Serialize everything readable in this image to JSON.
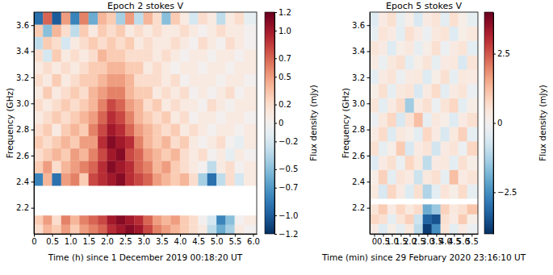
{
  "chart_data": [
    {
      "type": "heatmap",
      "title": "Epoch 2 stokes V",
      "x_label": "Time (h) since 1 December 2019 00:18:20 UT",
      "y_label": "Frequency (GHz)",
      "xlim": [
        0,
        6.1
      ],
      "xticks": [
        0,
        0.5,
        {
          "value": 1,
          "label": "1.0"
        },
        1.5,
        {
          "value": 2,
          "label": "2.0"
        },
        2.5,
        {
          "value": 3,
          "label": "3.0"
        },
        3.5,
        {
          "value": 4,
          "label": "4.0"
        },
        4.5,
        {
          "value": 5,
          "label": "5.0"
        },
        5.5,
        {
          "value": 6,
          "label": "6.0"
        }
      ],
      "ylim": [
        2.0,
        3.7
      ],
      "yticks": [
        2.2,
        2.4,
        2.6,
        2.8,
        {
          "value": 3,
          "label": "3.0"
        },
        3.2,
        3.4,
        3.6
      ],
      "x_edges": [
        0,
        0.25,
        0.5,
        0.75,
        1,
        1.25,
        1.5,
        1.75,
        2,
        2.25,
        2.5,
        2.75,
        3,
        3.25,
        3.5,
        3.75,
        4,
        4.25,
        4.5,
        4.75,
        5,
        5.25,
        5.5,
        5.75,
        6.1
      ],
      "y_edges": [
        2.0,
        2.07,
        2.14,
        2.37,
        2.465,
        2.56,
        2.655,
        2.75,
        2.845,
        2.94,
        3.035,
        3.13,
        3.225,
        3.32,
        3.415,
        3.51,
        3.605,
        3.7
      ],
      "cells": [
        [
          0.2,
          0.4,
          0.3,
          0.5,
          0.3,
          0.5,
          0.6,
          0.7,
          0.9,
          1.0,
          1.1,
          1.0,
          0.8,
          0.6,
          0.5,
          0.4,
          0.3,
          0.2,
          0.1,
          -0.3,
          -0.6,
          -0.4,
          0.1,
          0.0
        ],
        [
          0.3,
          0.5,
          0.2,
          0.6,
          0.4,
          0.6,
          0.7,
          0.8,
          1.0,
          1.1,
          1.0,
          0.9,
          0.7,
          0.5,
          0.4,
          0.5,
          0.3,
          0.2,
          0.0,
          -0.2,
          -0.8,
          -0.5,
          0.0,
          0.1
        ],
        null,
        [
          -0.8,
          0.4,
          -0.9,
          0.5,
          0.6,
          0.3,
          0.8,
          0.9,
          1.0,
          1.1,
          0.9,
          0.8,
          0.7,
          0.5,
          0.4,
          0.3,
          0.4,
          0.2,
          -0.4,
          -0.9,
          -0.3,
          0.2,
          -0.2,
          0.1
        ],
        [
          0.3,
          0.5,
          0.2,
          0.4,
          0.5,
          0.6,
          0.7,
          0.9,
          1.1,
          1.0,
          0.9,
          0.7,
          0.6,
          0.4,
          0.5,
          0.3,
          0.2,
          0.1,
          0.0,
          -0.3,
          0.1,
          0.2,
          0.0,
          0.1
        ],
        [
          0.2,
          0.3,
          0.4,
          0.3,
          0.5,
          0.4,
          0.6,
          0.8,
          1.0,
          1.1,
          0.8,
          0.7,
          0.5,
          0.4,
          0.3,
          0.4,
          0.2,
          0.1,
          0.2,
          0.0,
          0.1,
          -0.1,
          0.1,
          0.0
        ],
        [
          0.3,
          0.2,
          0.3,
          0.4,
          0.3,
          0.5,
          0.5,
          0.9,
          1.1,
          1.0,
          0.9,
          0.6,
          0.4,
          0.3,
          0.4,
          0.2,
          0.3,
          0.1,
          0.0,
          0.1,
          0.2,
          0.0,
          -0.1,
          0.1
        ],
        [
          0.2,
          0.3,
          0.1,
          0.3,
          0.4,
          0.3,
          0.6,
          0.8,
          1.0,
          0.9,
          0.7,
          0.5,
          0.4,
          0.3,
          0.2,
          0.3,
          0.1,
          0.2,
          0.1,
          0.0,
          0.1,
          0.1,
          0.0,
          0.1
        ],
        [
          0.1,
          0.2,
          0.3,
          0.2,
          0.3,
          0.4,
          0.5,
          0.7,
          0.9,
          0.8,
          0.6,
          0.4,
          0.3,
          0.2,
          0.3,
          0.1,
          0.2,
          0.0,
          0.1,
          0.1,
          0.0,
          0.1,
          0.1,
          0.0
        ],
        [
          0.2,
          0.1,
          0.2,
          0.3,
          0.2,
          0.3,
          0.4,
          0.6,
          0.8,
          0.7,
          0.5,
          0.4,
          0.2,
          0.3,
          0.1,
          0.2,
          0.1,
          0.1,
          0.0,
          0.2,
          0.1,
          0.0,
          0.1,
          0.1
        ],
        [
          0.1,
          0.3,
          0.1,
          0.2,
          0.3,
          0.2,
          0.4,
          0.5,
          0.6,
          0.6,
          0.4,
          0.3,
          0.3,
          0.1,
          0.2,
          0.1,
          0.2,
          0.0,
          0.1,
          0.0,
          0.1,
          0.2,
          0.0,
          0.1
        ],
        [
          0.2,
          0.1,
          0.3,
          0.1,
          0.2,
          0.3,
          0.3,
          0.4,
          0.5,
          0.5,
          0.4,
          0.2,
          0.2,
          0.2,
          0.1,
          0.2,
          0.0,
          0.1,
          0.1,
          0.1,
          0.0,
          0.1,
          0.1,
          0.0
        ],
        [
          0.1,
          0.2,
          0.1,
          0.2,
          0.1,
          0.2,
          0.3,
          0.3,
          0.4,
          0.4,
          0.3,
          0.3,
          0.1,
          0.2,
          0.1,
          0.0,
          0.1,
          0.1,
          0.0,
          0.1,
          0.1,
          0.0,
          0.1,
          0.1
        ],
        [
          0.2,
          -0.2,
          0.3,
          0.1,
          0.2,
          0.1,
          0.2,
          0.4,
          0.3,
          0.3,
          0.2,
          0.2,
          0.2,
          0.1,
          0.2,
          0.1,
          0.0,
          0.1,
          0.1,
          0.0,
          0.1,
          0.1,
          0.0,
          0.1
        ],
        [
          -0.3,
          0.3,
          0.2,
          -0.2,
          0.1,
          0.2,
          0.3,
          0.2,
          0.3,
          0.2,
          0.3,
          0.1,
          0.2,
          0.1,
          0.1,
          0.2,
          0.1,
          0.0,
          0.2,
          0.1,
          0.0,
          0.2,
          0.1,
          0.0
        ],
        [
          0.3,
          -0.5,
          0.4,
          0.2,
          -0.3,
          0.3,
          0.1,
          0.3,
          0.2,
          0.3,
          0.1,
          0.2,
          0.1,
          0.2,
          0.1,
          0.1,
          0.2,
          0.1,
          0.0,
          0.1,
          0.2,
          0.1,
          0.1,
          0.0
        ],
        [
          -0.9,
          0.7,
          -1.0,
          0.5,
          -0.8,
          0.6,
          -0.6,
          0.4,
          0.3,
          -0.4,
          0.5,
          -0.3,
          0.4,
          0.2,
          -0.5,
          0.3,
          0.1,
          -0.2,
          0.2,
          0.1,
          -0.3,
          0.1,
          0.2,
          -0.1
        ]
      ],
      "colorbar": {
        "label": "Flux density (mJy)",
        "range": [
          -1.2,
          1.2
        ],
        "ticks": [
          1.2,
          {
            "value": 1,
            "label": "1.0"
          },
          0.7,
          0.5,
          0.2,
          0,
          {
            "value": -0.2,
            "label": "−0.2"
          },
          {
            "value": -0.5,
            "label": "−0.5"
          },
          {
            "value": -0.7,
            "label": "−0.7"
          },
          {
            "value": -1,
            "label": "−1.0"
          },
          {
            "value": -1.2,
            "label": "−1.2"
          }
        ]
      }
    },
    {
      "type": "heatmap",
      "title": "Epoch 5 stokes V",
      "x_label": "Time (min) since 29 February 2020 23:16:10 UT",
      "y_label": "Frequency (GHz)",
      "xlim": [
        -0.25,
        5.85
      ],
      "xticks": [
        0,
        0.5,
        {
          "value": 1,
          "label": "1.0"
        },
        1.5,
        {
          "value": 2,
          "label": "2.0"
        },
        2.5,
        {
          "value": 3,
          "label": "3.0"
        },
        3.5,
        {
          "value": 4,
          "label": "4.0"
        },
        4.5,
        {
          "value": 5,
          "label": "5.0"
        },
        5.5
      ],
      "ylim": [
        2.0,
        3.7
      ],
      "yticks": [
        2.2,
        2.4,
        2.6,
        2.8,
        {
          "value": 3,
          "label": "3.0"
        },
        3.2,
        3.4,
        3.6
      ],
      "x_edges": [
        -0.25,
        0.25,
        0.75,
        1.25,
        1.75,
        2.25,
        2.75,
        3.25,
        3.75,
        4.25,
        4.75,
        5.25,
        5.85
      ],
      "y_edges": [
        2.0,
        2.075,
        2.15,
        2.225,
        2.27,
        2.38,
        2.49,
        2.6,
        2.71,
        2.82,
        2.93,
        3.04,
        3.15,
        3.26,
        3.37,
        3.48,
        3.59,
        3.7
      ],
      "cells": [
        [
          0.3,
          -0.5,
          0.2,
          -0.3,
          0.4,
          -1.0,
          -3.8,
          -2.5,
          0.5,
          -0.4,
          0.3,
          -0.2
        ],
        [
          0.8,
          0.6,
          -0.4,
          0.5,
          0.9,
          -0.8,
          -3.2,
          -3.5,
          0.6,
          0.3,
          1.0,
          0.2
        ],
        [
          0.5,
          1.0,
          0.3,
          0.8,
          0.4,
          0.7,
          -2.0,
          -1.5,
          0.9,
          0.4,
          0.6,
          1.1
        ],
        null,
        [
          0.4,
          -0.6,
          0.8,
          0.3,
          -0.5,
          0.6,
          -1.2,
          -0.4,
          0.5,
          0.2,
          0.7,
          -0.3
        ],
        [
          0.2,
          0.9,
          -0.4,
          0.5,
          0.3,
          -0.8,
          0.4,
          0.6,
          -0.3,
          1.2,
          0.3,
          0.5
        ],
        [
          -0.5,
          0.3,
          0.6,
          -0.2,
          0.8,
          0.4,
          -1.0,
          0.3,
          0.4,
          -0.4,
          0.6,
          0.2
        ],
        [
          0.6,
          -0.3,
          0.2,
          1.0,
          -0.6,
          0.3,
          0.5,
          -0.7,
          0.3,
          0.5,
          -0.2,
          0.8
        ],
        [
          0.3,
          0.7,
          -0.5,
          0.4,
          0.2,
          -0.4,
          0.8,
          0.3,
          -0.6,
          0.4,
          0.9,
          -0.3
        ],
        [
          -0.2,
          0.4,
          0.8,
          -0.6,
          0.5,
          1.2,
          -0.3,
          0.4,
          0.2,
          -0.5,
          0.3,
          0.6
        ],
        [
          0.5,
          -0.4,
          0.3,
          0.7,
          -1.4,
          0.3,
          0.6,
          -0.2,
          0.5,
          0.8,
          -0.4,
          0.2
        ],
        [
          0.2,
          0.6,
          -0.3,
          0.4,
          0.5,
          -0.6,
          0.3,
          0.7,
          -0.4,
          0.3,
          0.5,
          -0.2
        ],
        [
          -0.4,
          0.3,
          0.5,
          -0.2,
          0.3,
          0.4,
          -0.5,
          0.2,
          0.6,
          -0.3,
          0.4,
          0.3
        ],
        [
          0.3,
          -0.2,
          0.4,
          0.6,
          -0.4,
          0.2,
          0.5,
          -0.3,
          0.3,
          0.4,
          -0.6,
          0.5
        ],
        [
          0.5,
          0.3,
          -0.5,
          0.2,
          0.4,
          -0.3,
          0.2,
          0.6,
          -0.2,
          0.3,
          0.5,
          -0.4
        ],
        [
          -0.3,
          0.5,
          0.3,
          -0.4,
          0.6,
          0.3,
          -0.2,
          0.4,
          0.5,
          -0.5,
          0.2,
          0.4
        ],
        [
          -0.5,
          0.3,
          0.6,
          -0.3,
          0.2,
          -0.6,
          0.3,
          0.5,
          -0.4,
          0.6,
          0.2,
          -0.3
        ]
      ],
      "colorbar": {
        "label": "Flux density (mJy)",
        "range": [
          -4,
          4
        ],
        "ticks": [
          2.5,
          0,
          {
            "value": -2.5,
            "label": "−2.5"
          }
        ]
      }
    }
  ]
}
